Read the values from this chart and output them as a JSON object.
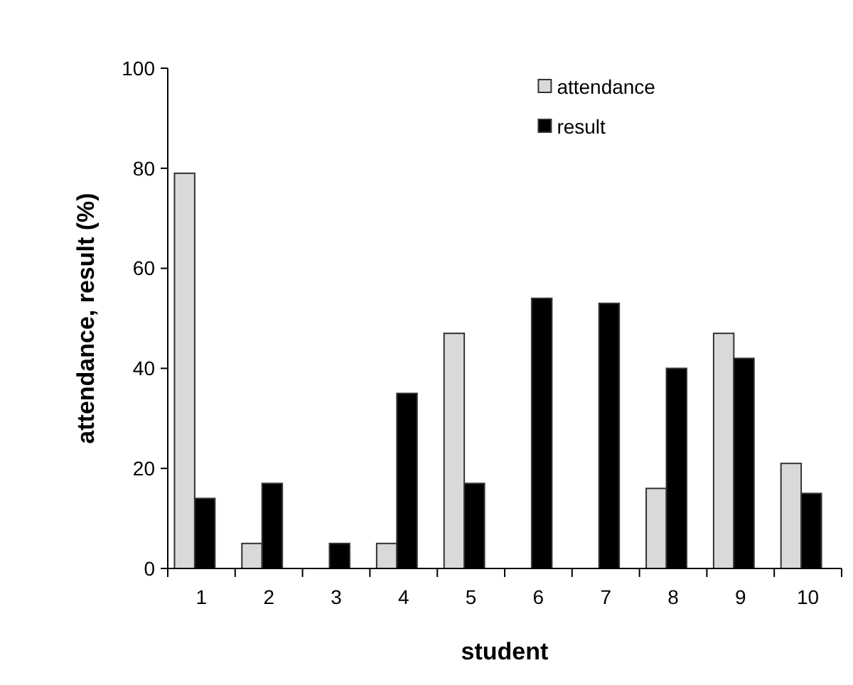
{
  "chart_data": {
    "type": "bar",
    "xlabel": "student",
    "ylabel": "attendance, result (%)",
    "categories": [
      "1",
      "2",
      "3",
      "4",
      "5",
      "6",
      "7",
      "8",
      "9",
      "10"
    ],
    "series": [
      {
        "name": "attendance",
        "color": "#d9d9d9",
        "values": [
          79,
          5,
          0,
          5,
          47,
          0,
          0,
          16,
          47,
          21
        ]
      },
      {
        "name": "result",
        "color": "#000000",
        "values": [
          14,
          17,
          5,
          35,
          17,
          54,
          53,
          40,
          42,
          15
        ]
      }
    ],
    "ylim": [
      0,
      100
    ],
    "yticks": [
      0,
      20,
      40,
      60,
      80,
      100
    ],
    "legend": "top right"
  }
}
